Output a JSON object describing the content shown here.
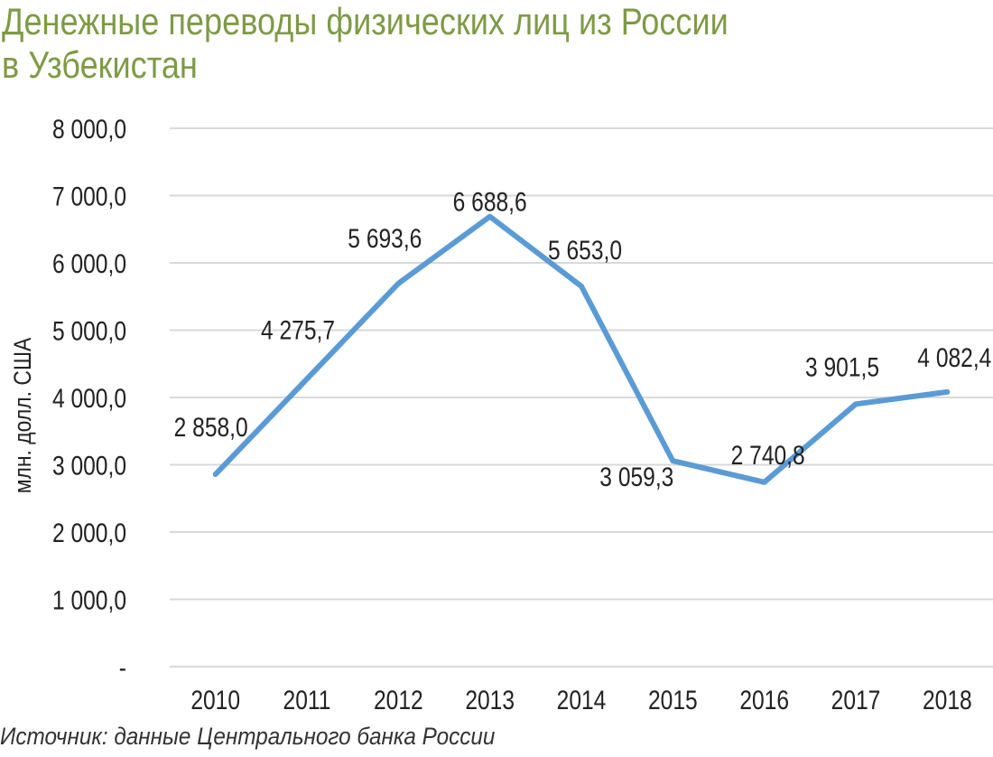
{
  "chart_data": {
    "type": "line",
    "title": [
      "Денежные переводы физических лиц из России",
      "в Узбекистан"
    ],
    "ylabel": "млн. долл. США",
    "xlabel": "",
    "categories": [
      "2010",
      "2011",
      "2012",
      "2013",
      "2014",
      "2015",
      "2016",
      "2017",
      "2018"
    ],
    "series": [
      {
        "values": [
          2858.0,
          4275.7,
          5693.6,
          6688.6,
          5653.0,
          3059.3,
          2740.8,
          3901.5,
          4082.4
        ],
        "labels": [
          "2 858,0",
          "4 275,7",
          "5 693,6",
          "6 688,6",
          "5 653,0",
          "3 059,3",
          "2 740,8",
          "3 901,5",
          "4 082,4"
        ]
      }
    ],
    "ylim": [
      0,
      8000
    ],
    "yticks": [
      0,
      1000,
      2000,
      3000,
      4000,
      5000,
      6000,
      7000,
      8000
    ],
    "ytick_labels": [
      "-",
      "1 000,0",
      "2 000,0",
      "3 000,0",
      "4 000,0",
      "5 000,0",
      "6 000,0",
      "7 000,0",
      "8 000,0"
    ],
    "grid": true,
    "line_color": "#5b9bd5",
    "grid_color": "#d9d9d9"
  },
  "title_color": "#7e9a46",
  "source": "Источник: данные Центрального банка России"
}
